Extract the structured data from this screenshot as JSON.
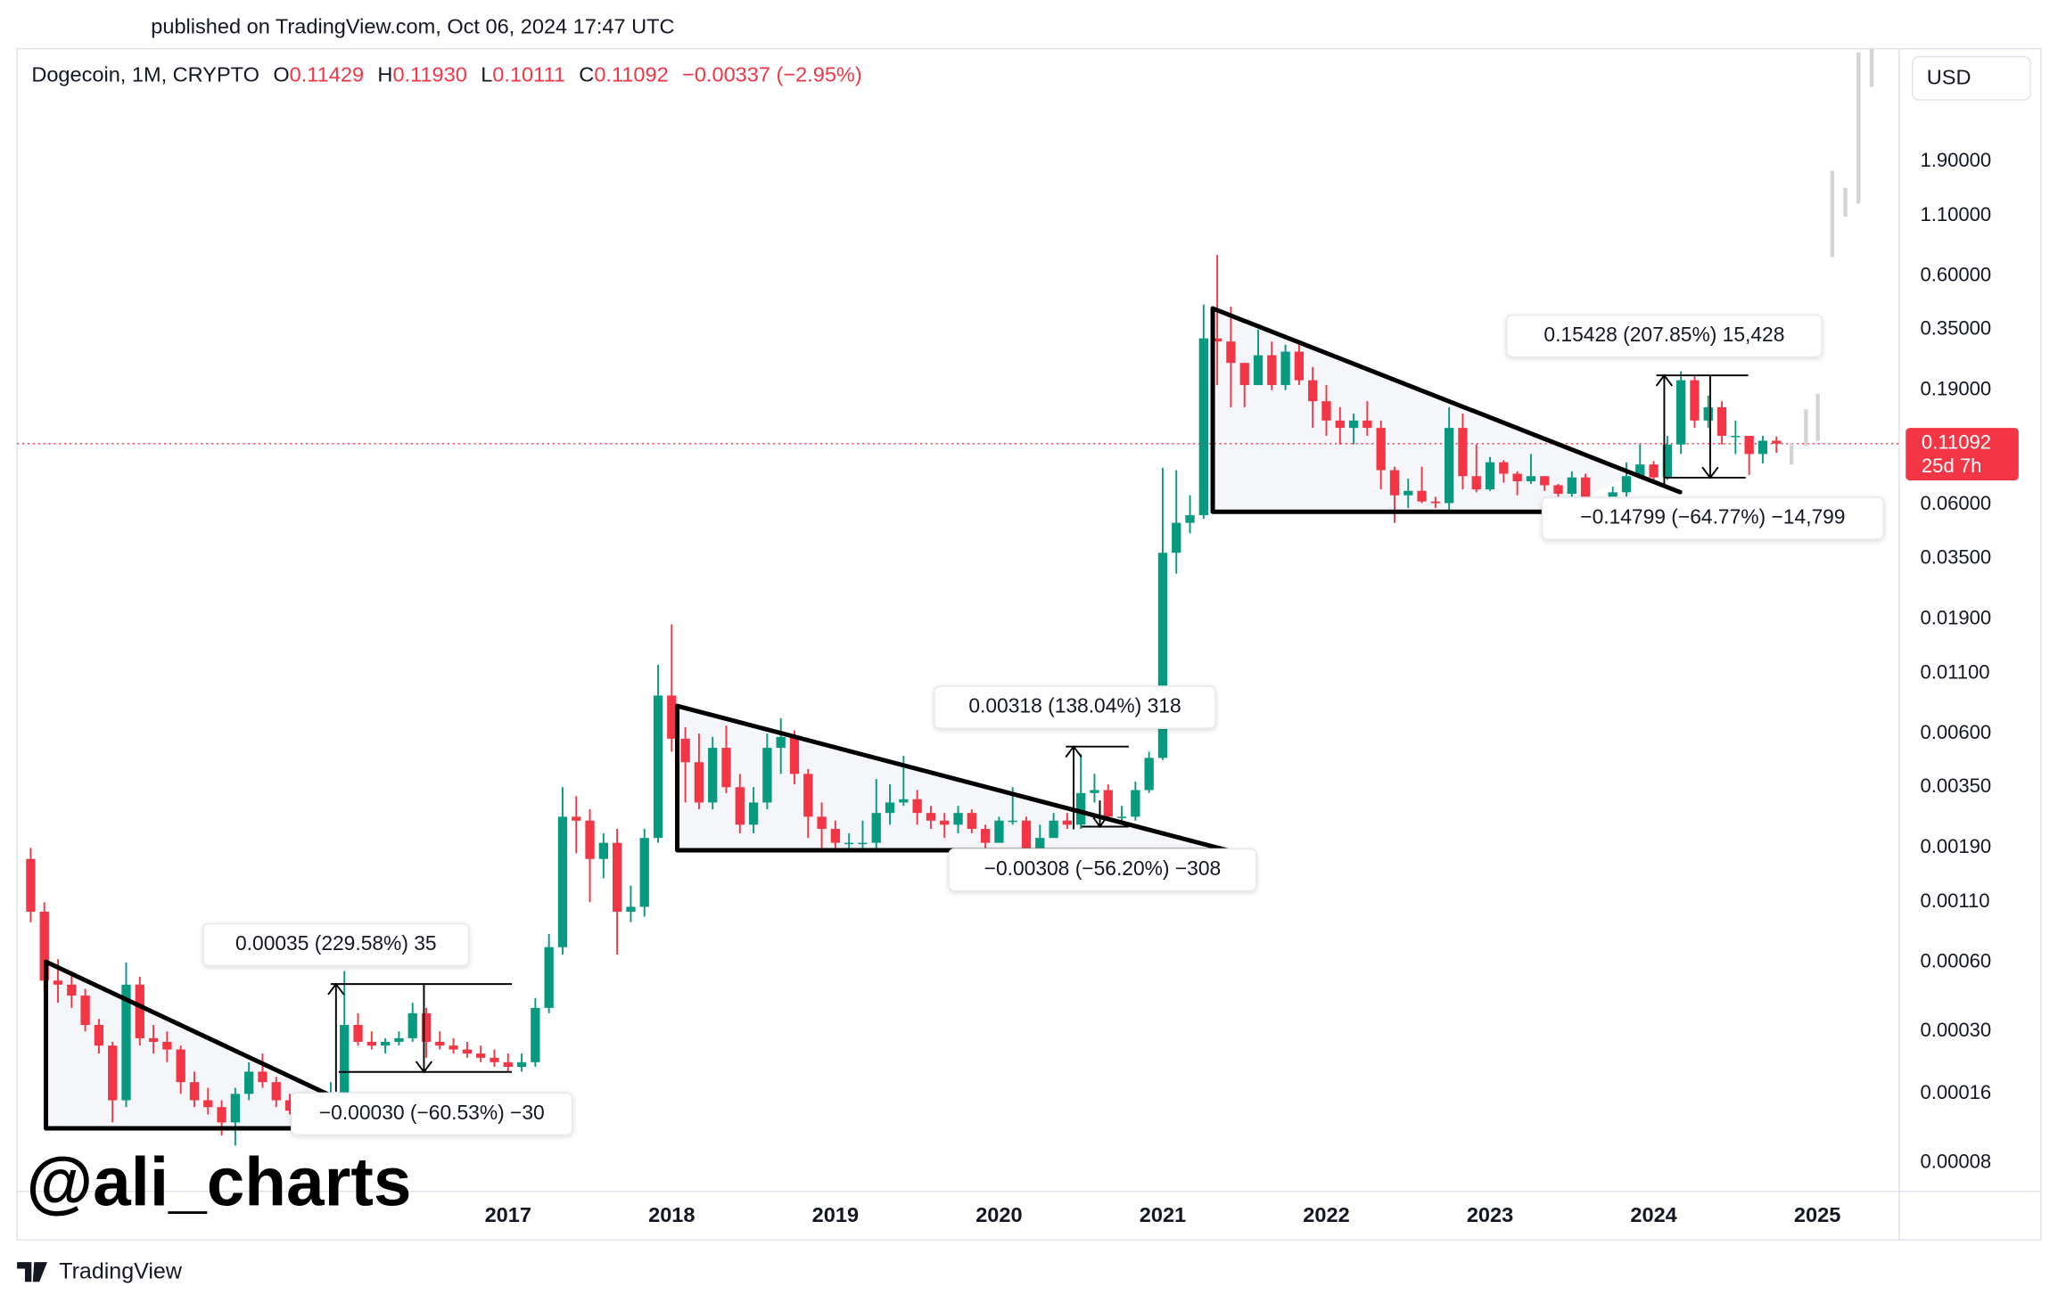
{
  "header": {
    "published": "published on TradingView.com, Oct 06, 2024 17:47 UTC",
    "brand": "TradingView",
    "watermark": "@ali_charts",
    "currency": "USD"
  },
  "chart_data": {
    "type": "candlestick",
    "legend": {
      "symbol": "Dogecoin, 1M, CRYPTO",
      "items": [
        {
          "key": "O",
          "value": "0.11429"
        },
        {
          "key": "H",
          "value": "0.11930"
        },
        {
          "key": "L",
          "value": "0.10111"
        },
        {
          "key": "C",
          "value": "0.11092"
        }
      ],
      "change": "−0.00337 (−2.95%)"
    },
    "countdown": "25d 7h",
    "up_color": "#089981",
    "down_color": "#f23645",
    "log_scale": true,
    "grid": false,
    "xlim": [
      "2014-01",
      "2025-07"
    ],
    "ylim": [
      6e-05,
      5.9
    ],
    "xticks": [
      {
        "value": "2017-01",
        "label": "2017"
      },
      {
        "value": "2018-01",
        "label": "2018"
      },
      {
        "value": "2019-01",
        "label": "2019"
      },
      {
        "value": "2020-01",
        "label": "2020"
      },
      {
        "value": "2021-01",
        "label": "2021"
      },
      {
        "value": "2022-01",
        "label": "2022"
      },
      {
        "value": "2023-01",
        "label": "2023"
      },
      {
        "value": "2024-01",
        "label": "2024"
      },
      {
        "value": "2025-01",
        "label": "2025"
      }
    ],
    "yticks": [
      {
        "value": 1.9,
        "label": "1.90000"
      },
      {
        "value": 1.1,
        "label": "1.10000"
      },
      {
        "value": 0.6,
        "label": "0.60000"
      },
      {
        "value": 0.35,
        "label": "0.35000"
      },
      {
        "value": 0.19,
        "label": "0.19000"
      },
      {
        "value": 0.06,
        "label": "0.06000"
      },
      {
        "value": 0.035,
        "label": "0.03500"
      },
      {
        "value": 0.019,
        "label": "0.01900"
      },
      {
        "value": 0.011,
        "label": "0.01100"
      },
      {
        "value": 0.006,
        "label": "0.00600"
      },
      {
        "value": 0.0035,
        "label": "0.00350"
      },
      {
        "value": 0.0019,
        "label": "0.00190"
      },
      {
        "value": 0.0011,
        "label": "0.00110"
      },
      {
        "value": 0.0006,
        "label": "0.00060"
      },
      {
        "value": 0.0003,
        "label": "0.00030"
      },
      {
        "value": 0.00016,
        "label": "0.00016"
      },
      {
        "value": 8e-05,
        "label": "0.00008"
      }
    ],
    "annotations": [
      "0.00035 (229.58%) 35",
      "−0.00030 (−60.53%) −30",
      "0.00318 (138.04%) 318",
      "−0.00308 (−56.20%) −308",
      "0.15428 (207.85%) 15,428",
      "−0.14799 (−64.77%) −14,799"
    ],
    "x": [
      "2014-02",
      "2014-03",
      "2014-04",
      "2014-05",
      "2014-06",
      "2014-07",
      "2014-08",
      "2014-09",
      "2014-10",
      "2014-11",
      "2014-12",
      "2015-01",
      "2015-02",
      "2015-03",
      "2015-04",
      "2015-05",
      "2015-06",
      "2015-07",
      "2015-08",
      "2015-09",
      "2015-10",
      "2015-11",
      "2015-12",
      "2016-01",
      "2016-02",
      "2016-03",
      "2016-04",
      "2016-05",
      "2016-06",
      "2016-07",
      "2016-08",
      "2016-09",
      "2016-10",
      "2016-11",
      "2016-12",
      "2017-01",
      "2017-02",
      "2017-03",
      "2017-04",
      "2017-05",
      "2017-06",
      "2017-07",
      "2017-08",
      "2017-09",
      "2017-10",
      "2017-11",
      "2017-12",
      "2018-01",
      "2018-02",
      "2018-03",
      "2018-04",
      "2018-05",
      "2018-06",
      "2018-07",
      "2018-08",
      "2018-09",
      "2018-10",
      "2018-11",
      "2018-12",
      "2019-01",
      "2019-02",
      "2019-03",
      "2019-04",
      "2019-05",
      "2019-06",
      "2019-07",
      "2019-08",
      "2019-09",
      "2019-10",
      "2019-11",
      "2019-12",
      "2020-01",
      "2020-02",
      "2020-03",
      "2020-04",
      "2020-05",
      "2020-06",
      "2020-07",
      "2020-08",
      "2020-09",
      "2020-10",
      "2020-11",
      "2020-12",
      "2021-01",
      "2021-02",
      "2021-03",
      "2021-04",
      "2021-05",
      "2021-06",
      "2021-07",
      "2021-08",
      "2021-09",
      "2021-10",
      "2021-11",
      "2021-12",
      "2022-01",
      "2022-02",
      "2022-03",
      "2022-04",
      "2022-05",
      "2022-06",
      "2022-07",
      "2022-08",
      "2022-09",
      "2022-10",
      "2022-11",
      "2022-12",
      "2023-01",
      "2023-02",
      "2023-03",
      "2023-04",
      "2023-05",
      "2023-06",
      "2023-07",
      "2023-08",
      "2023-09",
      "2023-10",
      "2023-11",
      "2023-12",
      "2024-01",
      "2024-02",
      "2024-03",
      "2024-04",
      "2024-05",
      "2024-06",
      "2024-07",
      "2024-08",
      "2024-09",
      "2024-10"
    ],
    "open": [
      0.0017,
      0.001,
      0.0005,
      0.00048,
      0.00043,
      0.00032,
      0.00026,
      0.00015,
      0.00048,
      0.00028,
      0.00027,
      0.00025,
      0.00018,
      0.00015,
      0.00014,
      0.00012,
      0.00016,
      0.0002,
      0.00018,
      0.00015,
      0.000135,
      0.00015,
      0.00014,
      0.00016,
      0.00032,
      0.00027,
      0.00026,
      0.00027,
      0.00028,
      0.00036,
      0.00027,
      0.00026,
      0.00025,
      0.00024,
      0.00023,
      0.00022,
      0.00021,
      0.00022,
      0.00038,
      0.0007,
      0.0026,
      0.0025,
      0.0017,
      0.002,
      0.001,
      0.00105,
      0.0021,
      0.0088,
      0.0057,
      0.0045,
      0.003,
      0.0052,
      0.0035,
      0.0024,
      0.003,
      0.0052,
      0.0058,
      0.004,
      0.0026,
      0.0023,
      0.002,
      0.002,
      0.002,
      0.0027,
      0.003,
      0.0031,
      0.0027,
      0.0025,
      0.0024,
      0.0027,
      0.0023,
      0.002,
      0.0025,
      0.0025,
      0.0017,
      0.0021,
      0.0025,
      0.0024,
      0.0033,
      0.0034,
      0.0026,
      0.0026,
      0.0034,
      0.0047,
      0.037,
      0.05,
      0.054,
      0.32,
      0.31,
      0.25,
      0.2,
      0.27,
      0.2,
      0.28,
      0.21,
      0.17,
      0.14,
      0.13,
      0.14,
      0.13,
      0.085,
      0.066,
      0.069,
      0.062,
      0.061,
      0.13,
      0.08,
      0.07,
      0.092,
      0.082,
      0.076,
      0.08,
      0.073,
      0.067,
      0.079,
      0.064,
      0.063,
      0.068,
      0.08,
      0.09,
      0.079,
      0.11,
      0.21,
      0.14,
      0.16,
      0.12,
      0.12,
      0.1,
      0.11429
    ],
    "high": [
      0.0019,
      0.0011,
      0.00062,
      0.00055,
      0.00046,
      0.00034,
      0.00027,
      0.0006,
      0.00052,
      0.00032,
      0.0003,
      0.00026,
      0.0002,
      0.00017,
      0.00015,
      0.00017,
      0.00022,
      0.00024,
      0.00019,
      0.00016,
      0.00016,
      0.00016,
      0.00018,
      0.00055,
      0.00036,
      0.0003,
      0.00028,
      0.0003,
      0.0004,
      0.00038,
      0.0003,
      0.00028,
      0.00027,
      0.00026,
      0.00025,
      0.00024,
      0.00024,
      0.00042,
      0.0008,
      0.0035,
      0.0032,
      0.0028,
      0.0022,
      0.0023,
      0.0013,
      0.0023,
      0.012,
      0.018,
      0.0064,
      0.006,
      0.0058,
      0.0065,
      0.004,
      0.0035,
      0.006,
      0.007,
      0.0062,
      0.0042,
      0.003,
      0.0025,
      0.0022,
      0.0025,
      0.0038,
      0.0036,
      0.0048,
      0.0034,
      0.0029,
      0.0027,
      0.0029,
      0.0028,
      0.0024,
      0.0026,
      0.0035,
      0.0026,
      0.0024,
      0.0027,
      0.0027,
      0.0049,
      0.004,
      0.0036,
      0.0029,
      0.0037,
      0.005,
      0.087,
      0.085,
      0.066,
      0.45,
      0.74,
      0.44,
      0.25,
      0.35,
      0.31,
      0.3,
      0.3,
      0.24,
      0.2,
      0.16,
      0.15,
      0.17,
      0.14,
      0.088,
      0.078,
      0.088,
      0.065,
      0.16,
      0.15,
      0.11,
      0.097,
      0.094,
      0.084,
      0.1,
      0.08,
      0.074,
      0.084,
      0.082,
      0.065,
      0.072,
      0.092,
      0.11,
      0.093,
      0.12,
      0.23,
      0.22,
      0.18,
      0.17,
      0.14,
      0.12,
      0.12,
      0.1193
    ],
    "low": [
      0.0009,
      0.00045,
      0.0004,
      0.00038,
      0.0003,
      0.00024,
      0.00012,
      0.00014,
      0.00026,
      0.00024,
      0.00022,
      0.00016,
      0.00014,
      0.00013,
      0.000105,
      9.5e-05,
      0.00015,
      0.00017,
      0.00014,
      0.00013,
      0.00012,
      0.00013,
      0.00013,
      0.00015,
      0.00026,
      0.00025,
      0.00024,
      0.00026,
      0.00027,
      0.00023,
      0.00025,
      0.00024,
      0.00023,
      0.00022,
      0.00021,
      0.0002,
      0.0002,
      0.00021,
      0.00036,
      0.00065,
      0.0018,
      0.0011,
      0.0014,
      0.00065,
      0.0009,
      0.00095,
      0.002,
      0.005,
      0.003,
      0.0028,
      0.0028,
      0.0033,
      0.0022,
      0.0022,
      0.0028,
      0.004,
      0.0036,
      0.0021,
      0.0019,
      0.0019,
      0.0019,
      0.0019,
      0.0019,
      0.0024,
      0.0029,
      0.0024,
      0.0023,
      0.0021,
      0.0022,
      0.0022,
      0.0019,
      0.002,
      0.0024,
      0.0013,
      0.0016,
      0.0021,
      0.0023,
      0.0023,
      0.003,
      0.0025,
      0.0025,
      0.0025,
      0.0033,
      0.0046,
      0.03,
      0.045,
      0.052,
      0.2,
      0.16,
      0.16,
      0.2,
      0.19,
      0.19,
      0.2,
      0.13,
      0.12,
      0.11,
      0.11,
      0.12,
      0.07,
      0.05,
      0.058,
      0.061,
      0.058,
      0.057,
      0.07,
      0.068,
      0.069,
      0.075,
      0.066,
      0.074,
      0.069,
      0.056,
      0.062,
      0.06,
      0.058,
      0.058,
      0.065,
      0.078,
      0.074,
      0.077,
      0.1,
      0.13,
      0.13,
      0.11,
      0.1,
      0.081,
      0.091,
      0.10111
    ],
    "close": [
      0.001,
      0.0005,
      0.00048,
      0.00043,
      0.00032,
      0.00026,
      0.00015,
      0.00048,
      0.00028,
      0.00027,
      0.00025,
      0.00018,
      0.00015,
      0.00014,
      0.00012,
      0.00016,
      0.0002,
      0.00018,
      0.00015,
      0.000135,
      0.00015,
      0.00014,
      0.00016,
      0.00032,
      0.00027,
      0.00026,
      0.00027,
      0.00028,
      0.00036,
      0.00027,
      0.00026,
      0.00025,
      0.00024,
      0.00023,
      0.00022,
      0.00021,
      0.00022,
      0.00038,
      0.0007,
      0.0026,
      0.0025,
      0.0017,
      0.002,
      0.001,
      0.00105,
      0.0021,
      0.0088,
      0.0057,
      0.0045,
      0.003,
      0.0052,
      0.0035,
      0.0024,
      0.003,
      0.0052,
      0.0058,
      0.004,
      0.0026,
      0.0023,
      0.002,
      0.002,
      0.002,
      0.0027,
      0.003,
      0.0031,
      0.0027,
      0.0025,
      0.0024,
      0.0027,
      0.0023,
      0.002,
      0.0025,
      0.0025,
      0.0017,
      0.0021,
      0.0025,
      0.0024,
      0.0033,
      0.0034,
      0.0026,
      0.0026,
      0.0034,
      0.0047,
      0.037,
      0.05,
      0.054,
      0.32,
      0.31,
      0.25,
      0.2,
      0.27,
      0.2,
      0.28,
      0.21,
      0.17,
      0.14,
      0.13,
      0.14,
      0.13,
      0.085,
      0.066,
      0.069,
      0.062,
      0.061,
      0.13,
      0.08,
      0.07,
      0.092,
      0.082,
      0.076,
      0.08,
      0.073,
      0.067,
      0.079,
      0.064,
      0.063,
      0.068,
      0.08,
      0.09,
      0.079,
      0.11,
      0.21,
      0.14,
      0.16,
      0.12,
      0.12,
      0.1,
      0.11429,
      0.11092
    ]
  }
}
